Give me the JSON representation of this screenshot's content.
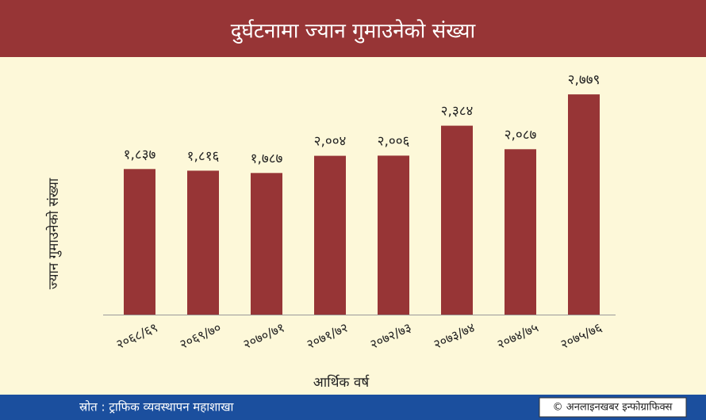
{
  "chart_data": {
    "type": "bar",
    "title": "दुर्घटनामा ज्यान गुमाउनेको संख्या",
    "y_label": "ज्यान गुमाउनेको संख्या",
    "x_label": "आर्थिक वर्ष",
    "source": "स्रोत : ट्राफिक व्यवस्थापन महाशाखा",
    "credit": "© अनलाइनखबर इन्फोग्राफिक्स",
    "categories": [
      "२०६८/६९",
      "२०६९/७०",
      "२०७०/७१",
      "२०७१/७२",
      "२०७२/७३",
      "२०७३/७४",
      "२०७४/७५",
      "२०७५/७६"
    ],
    "values": [
      1837,
      1816,
      1787,
      2004,
      2006,
      2384,
      2087,
      2779
    ],
    "value_labels": [
      "१,८३७",
      "१,८१६",
      "१,७८७",
      "२,००४",
      "२,००६",
      "२,३८४",
      "२,०८७",
      "२,७७९"
    ],
    "color": "#973536"
  }
}
